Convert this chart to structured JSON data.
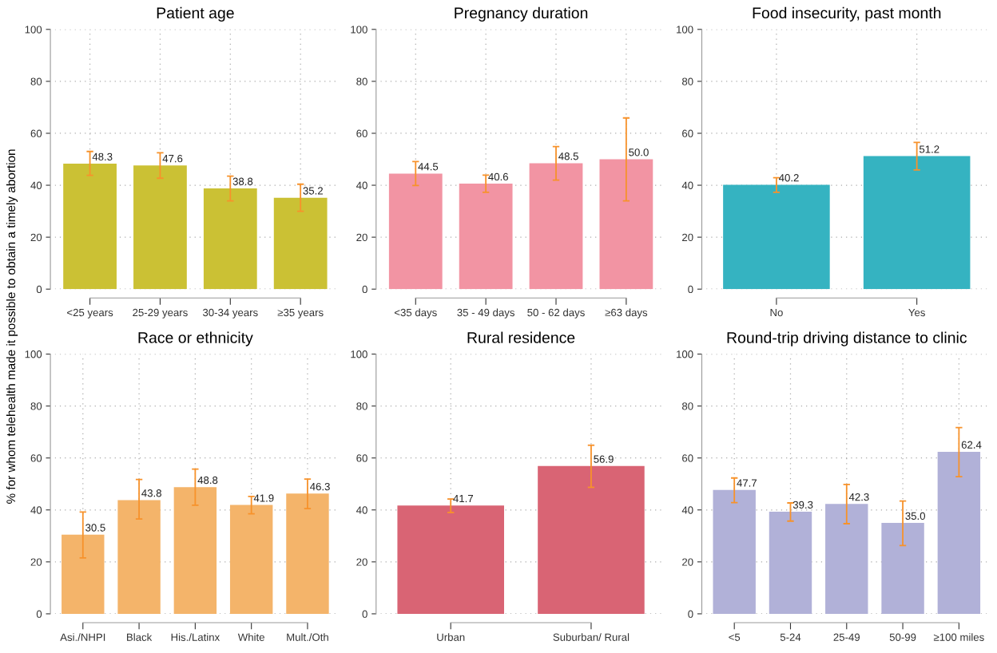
{
  "chart_data": [
    {
      "type": "bar",
      "title": "Patient age",
      "ylabel": "% for whom telehealth made it possible to obtain a timely abortion",
      "categories": [
        "<25 years",
        "25-29 years",
        "30-34 years",
        "≥35 years"
      ],
      "values": [
        48.3,
        47.6,
        38.8,
        35.2
      ],
      "value_labels": [
        "48.3",
        "47.6",
        "38.8",
        "35.2"
      ],
      "errors": [
        [
          43.8,
          53.0
        ],
        [
          42.7,
          52.5
        ],
        [
          34.0,
          43.5
        ],
        [
          30.0,
          40.4
        ]
      ],
      "color": "#cbc134",
      "ylim": [
        0,
        100
      ],
      "yticks": [
        0,
        20,
        40,
        60,
        80,
        100
      ],
      "grid": true
    },
    {
      "type": "bar",
      "title": "Pregnancy duration",
      "categories": [
        "<35 days",
        "35 - 49 days",
        "50 - 62 days",
        "≥63 days"
      ],
      "values": [
        44.5,
        40.6,
        48.5,
        50.0
      ],
      "value_labels": [
        "44.5",
        "40.6",
        "48.5",
        "50.0"
      ],
      "errors": [
        [
          39.9,
          49.1
        ],
        [
          37.3,
          43.9
        ],
        [
          42.0,
          54.9
        ],
        [
          34.0,
          65.9
        ]
      ],
      "color": "#f294a3",
      "ylim": [
        0,
        100
      ],
      "yticks": [
        0,
        20,
        40,
        60,
        80,
        100
      ],
      "grid": true
    },
    {
      "type": "bar",
      "title": "Food insecurity, past month",
      "categories": [
        "No",
        "Yes"
      ],
      "values": [
        40.2,
        51.2
      ],
      "value_labels": [
        "40.2",
        "51.2"
      ],
      "errors": [
        [
          37.3,
          42.9
        ],
        [
          45.9,
          56.5
        ]
      ],
      "color": "#35b3c1",
      "ylim": [
        0,
        100
      ],
      "yticks": [
        0,
        20,
        40,
        60,
        80,
        100
      ],
      "grid": true
    },
    {
      "type": "bar",
      "title": "Race or ethnicity",
      "categories": [
        "Asi./NHPI",
        "Black",
        "His./Latinx",
        "White",
        "Mult./Oth"
      ],
      "values": [
        30.5,
        43.8,
        48.8,
        41.9,
        46.3
      ],
      "value_labels": [
        "30.5",
        "43.8",
        "48.8",
        "41.9",
        "46.3"
      ],
      "errors": [
        [
          21.5,
          39.2
        ],
        [
          36.5,
          51.7
        ],
        [
          41.8,
          55.7
        ],
        [
          38.5,
          45.2
        ],
        [
          40.5,
          51.9
        ]
      ],
      "color": "#f4b46a",
      "ylim": [
        0,
        100
      ],
      "yticks": [
        0,
        20,
        40,
        60,
        80,
        100
      ],
      "grid": true
    },
    {
      "type": "bar",
      "title": "Rural residence",
      "categories": [
        "Urban",
        "Suburban/ Rural"
      ],
      "values": [
        41.7,
        56.9
      ],
      "value_labels": [
        "41.7",
        "56.9"
      ],
      "errors": [
        [
          39.0,
          44.2
        ],
        [
          48.7,
          64.9
        ]
      ],
      "color": "#d96474",
      "ylim": [
        0,
        100
      ],
      "yticks": [
        0,
        20,
        40,
        60,
        80,
        100
      ],
      "grid": true
    },
    {
      "type": "bar",
      "title": "Round-trip driving distance to clinic",
      "categories": [
        "<5",
        "5-24",
        "25-49",
        "50-99",
        "≥100 miles"
      ],
      "values": [
        47.7,
        39.3,
        42.3,
        35.0,
        62.4
      ],
      "value_labels": [
        "47.7",
        "39.3",
        "42.3",
        "35.0",
        "62.4"
      ],
      "errors": [
        [
          42.8,
          52.3
        ],
        [
          35.7,
          42.7
        ],
        [
          34.7,
          49.8
        ],
        [
          26.3,
          43.4
        ],
        [
          52.8,
          71.7
        ]
      ],
      "color": "#b1b1d8",
      "ylim": [
        0,
        100
      ],
      "yticks": [
        0,
        20,
        40,
        60,
        80,
        100
      ],
      "grid": true
    }
  ]
}
